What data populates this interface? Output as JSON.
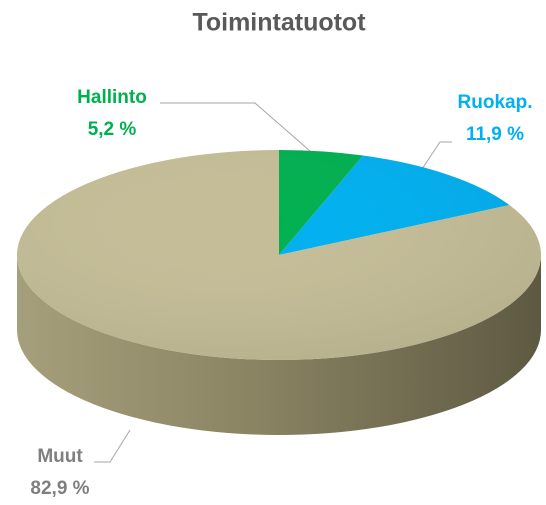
{
  "chart_data": {
    "type": "pie",
    "title": "Toimintatuotot",
    "categories": [
      "Hallinto",
      "Ruokap.",
      "Muut"
    ],
    "values": [
      5.2,
      11.9,
      82.9
    ],
    "value_labels": [
      "5,2 %",
      "11,9 %",
      "82,9 %"
    ],
    "colors": [
      "#00b050",
      "#00b0f0",
      "#c4bd97"
    ],
    "label_colors": [
      "#00b050",
      "#00b0f0",
      "#7f7f7f"
    ]
  }
}
